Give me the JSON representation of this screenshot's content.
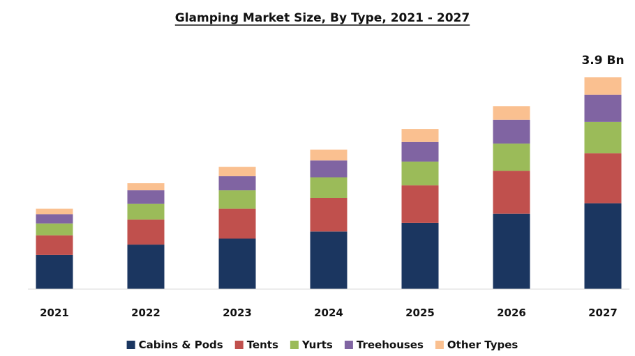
{
  "chart_data": {
    "type": "bar",
    "stacked": true,
    "title": "Glamping Market Size, By Type, 2021 - 2027",
    "xlabel": "",
    "ylabel": "",
    "categories": [
      "2021",
      "2022",
      "2023",
      "2024",
      "2025",
      "2026",
      "2027"
    ],
    "series": [
      {
        "name": "Cabins & Pods",
        "color": "#1b3660",
        "values": [
          0.63,
          0.82,
          0.93,
          1.06,
          1.22,
          1.39,
          1.58
        ]
      },
      {
        "name": "Tents",
        "color": "#c0504d",
        "values": [
          0.36,
          0.46,
          0.55,
          0.62,
          0.69,
          0.79,
          0.92
        ]
      },
      {
        "name": "Yurts",
        "color": "#9bbb59",
        "values": [
          0.22,
          0.29,
          0.34,
          0.38,
          0.44,
          0.5,
          0.58
        ]
      },
      {
        "name": "Treehouses",
        "color": "#8064a2",
        "values": [
          0.17,
          0.25,
          0.26,
          0.31,
          0.36,
          0.44,
          0.5
        ]
      },
      {
        "name": "Other Types",
        "color": "#fac090",
        "values": [
          0.1,
          0.13,
          0.17,
          0.2,
          0.24,
          0.25,
          0.32
        ]
      }
    ],
    "data_labels": [
      {
        "category": "2027",
        "text": "3.9 Bn"
      }
    ],
    "ylim": [
      0,
      3.9
    ],
    "grid": false,
    "legend": "bottom"
  }
}
